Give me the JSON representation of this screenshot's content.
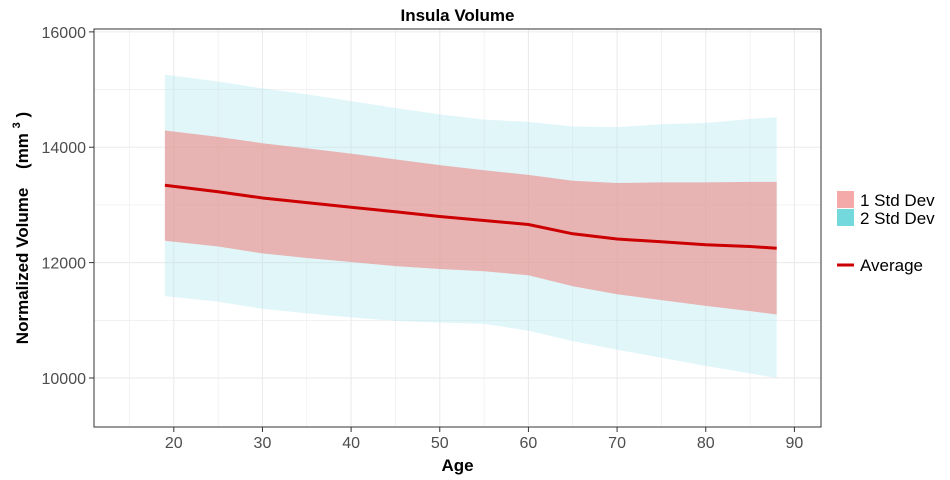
{
  "chart_data": {
    "type": "area",
    "title": "Insula Volume",
    "xlabel": "Age",
    "ylabel": "Normalized Volume",
    "ylabel_unit": "(mm",
    "ylabel_unit_sup": "3",
    "ylabel_unit_close": ")",
    "xlim": [
      11,
      93
    ],
    "ylim": [
      9150,
      16050
    ],
    "x_ticks": [
      20,
      30,
      40,
      50,
      60,
      70,
      80,
      90
    ],
    "y_ticks": [
      10000,
      12000,
      14000,
      16000
    ],
    "grid": true,
    "legend_position": "right",
    "legend": {
      "band1_label": "1 Std Dev",
      "band2_label": "2 Std Dev",
      "line_label": "Average"
    },
    "colors": {
      "band1": "#f08b8b",
      "band2": "#d4f3f6",
      "band2_legend": "#74d9dc",
      "band1_legend": "#f4aaa8",
      "average": "#cc0000",
      "grid": "#ebebeb"
    },
    "x": [
      19,
      25,
      30,
      35,
      40,
      45,
      50,
      55,
      60,
      65,
      70,
      75,
      80,
      85,
      88
    ],
    "average": [
      13340,
      13230,
      13120,
      13040,
      12960,
      12880,
      12800,
      12730,
      12660,
      12500,
      12410,
      12360,
      12310,
      12280,
      12250
    ],
    "sd1_upper": [
      14290,
      14180,
      14070,
      13980,
      13890,
      13790,
      13690,
      13600,
      13520,
      13420,
      13380,
      13390,
      13390,
      13400,
      13400
    ],
    "sd1_lower": [
      12380,
      12280,
      12160,
      12080,
      12010,
      11940,
      11890,
      11850,
      11780,
      11590,
      11450,
      11350,
      11250,
      11160,
      11100
    ],
    "sd2_upper": [
      15260,
      15140,
      15020,
      14920,
      14800,
      14680,
      14570,
      14480,
      14440,
      14360,
      14350,
      14400,
      14420,
      14490,
      14520
    ],
    "sd2_lower": [
      11420,
      11320,
      11200,
      11120,
      11050,
      10990,
      10960,
      10940,
      10820,
      10640,
      10490,
      10350,
      10210,
      10080,
      10000
    ]
  }
}
